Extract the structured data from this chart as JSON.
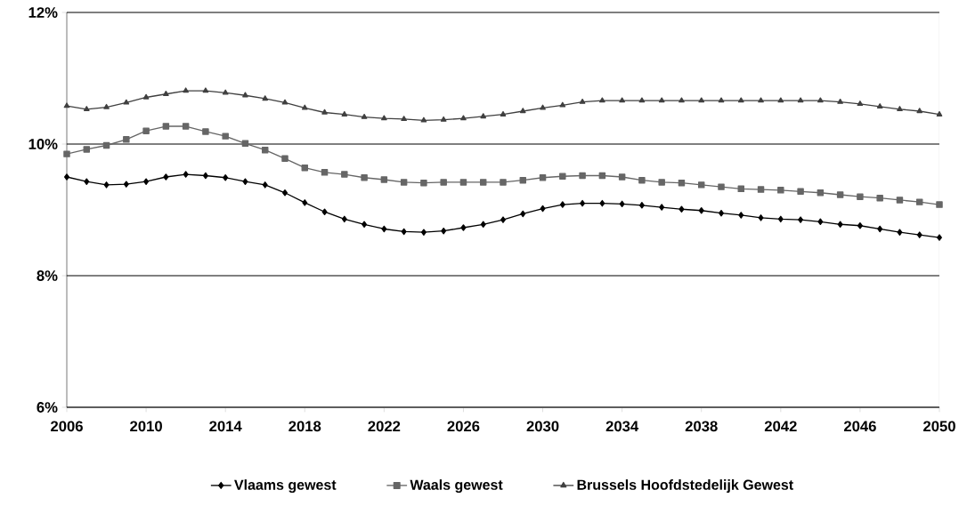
{
  "chart_data": {
    "type": "line",
    "x": [
      2006,
      2007,
      2008,
      2009,
      2010,
      2011,
      2012,
      2013,
      2014,
      2015,
      2016,
      2017,
      2018,
      2019,
      2020,
      2021,
      2022,
      2023,
      2024,
      2025,
      2026,
      2027,
      2028,
      2029,
      2030,
      2031,
      2032,
      2033,
      2034,
      2035,
      2036,
      2037,
      2038,
      2039,
      2040,
      2041,
      2042,
      2043,
      2044,
      2045,
      2046,
      2047,
      2048,
      2049,
      2050
    ],
    "series": [
      {
        "name": "Vlaams gewest",
        "color": "#000000",
        "marker": "diamond",
        "values": [
          9.5,
          9.43,
          9.38,
          9.39,
          9.43,
          9.5,
          9.54,
          9.52,
          9.49,
          9.43,
          9.38,
          9.26,
          9.11,
          8.97,
          8.86,
          8.78,
          8.71,
          8.67,
          8.66,
          8.68,
          8.73,
          8.78,
          8.85,
          8.94,
          9.02,
          9.08,
          9.1,
          9.1,
          9.09,
          9.07,
          9.04,
          9.01,
          8.99,
          8.95,
          8.92,
          8.88,
          8.86,
          8.85,
          8.82,
          8.78,
          8.76,
          8.71,
          8.66,
          8.62,
          8.58
        ]
      },
      {
        "name": "Waals gewest",
        "color": "#666666",
        "marker": "square",
        "values": [
          9.85,
          9.92,
          9.98,
          10.07,
          10.2,
          10.27,
          10.27,
          10.19,
          10.12,
          10.01,
          9.91,
          9.78,
          9.64,
          9.57,
          9.54,
          9.49,
          9.46,
          9.42,
          9.41,
          9.42,
          9.42,
          9.42,
          9.42,
          9.45,
          9.49,
          9.51,
          9.52,
          9.52,
          9.5,
          9.45,
          9.42,
          9.41,
          9.38,
          9.35,
          9.32,
          9.31,
          9.3,
          9.28,
          9.26,
          9.23,
          9.2,
          9.18,
          9.15,
          9.12,
          9.08
        ]
      },
      {
        "name": "Brussels Hoofdstedelijk Gewest",
        "color": "#404040",
        "marker": "triangle",
        "values": [
          10.58,
          10.53,
          10.56,
          10.63,
          10.71,
          10.76,
          10.81,
          10.81,
          10.78,
          10.74,
          10.69,
          10.63,
          10.55,
          10.48,
          10.45,
          10.41,
          10.39,
          10.38,
          10.36,
          10.37,
          10.39,
          10.42,
          10.45,
          10.5,
          10.55,
          10.59,
          10.64,
          10.66,
          10.66,
          10.66,
          10.66,
          10.66,
          10.66,
          10.66,
          10.66,
          10.66,
          10.66,
          10.66,
          10.66,
          10.64,
          10.61,
          10.57,
          10.53,
          10.5,
          10.45
        ]
      }
    ],
    "xlim": [
      2006,
      2050
    ],
    "xticks": [
      2006,
      2010,
      2014,
      2018,
      2022,
      2026,
      2030,
      2034,
      2038,
      2042,
      2046,
      2050
    ],
    "ylim": [
      6,
      12
    ],
    "yticks": [
      {
        "value": 6,
        "label": "6%"
      },
      {
        "value": 8,
        "label": "8%"
      },
      {
        "value": 10,
        "label": "10%"
      },
      {
        "value": 12,
        "label": "12%"
      }
    ],
    "grid": "y",
    "legend": "bottom",
    "line_style": "solid"
  }
}
